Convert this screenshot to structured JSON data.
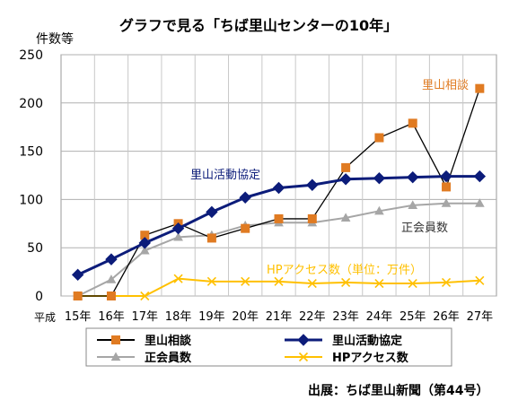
{
  "chart_data": {
    "type": "line",
    "title": "グラフで見る「ちば里山センターの10年」",
    "ylabel": "件数等",
    "x_prefix": "平成",
    "categories": [
      "15年",
      "16年",
      "17年",
      "18年",
      "19年",
      "20年",
      "21年",
      "22年",
      "23年",
      "24年",
      "25年",
      "26年",
      "27年"
    ],
    "ylim": [
      0,
      250
    ],
    "yticks": [
      0,
      50,
      100,
      150,
      200,
      250
    ],
    "grid": true,
    "legend_position": "bottom",
    "series": [
      {
        "name": "里山相談",
        "values": [
          0,
          0,
          63,
          75,
          60,
          70,
          80,
          80,
          133,
          164,
          179,
          113,
          215
        ],
        "color": "#e07b22",
        "marker": "square",
        "line_color": "#000000",
        "annotation": "里山相談",
        "annotation_color": "#e07b22"
      },
      {
        "name": "里山活動協定",
        "values": [
          22,
          38,
          55,
          70,
          87,
          102,
          112,
          115,
          121,
          122,
          123,
          124,
          124
        ],
        "color": "#0c1c7a",
        "marker": "diamond",
        "line_color": "#0c1c7a",
        "annotation": "里山活動協定",
        "annotation_color": "#0c1c7a"
      },
      {
        "name": "正会員数",
        "values": [
          0,
          17,
          47,
          61,
          63,
          73,
          76,
          76,
          81,
          88,
          94,
          96,
          96
        ],
        "color": "#a6a6a6",
        "marker": "triangle",
        "line_color": "#a6a6a6",
        "annotation": "正会員数",
        "annotation_color": "#333333"
      },
      {
        "name": "HPアクセス数",
        "values": [
          0,
          0,
          0,
          18,
          15,
          15,
          15,
          13,
          14,
          13,
          13,
          14,
          16
        ],
        "color": "#ffc000",
        "marker": "x",
        "line_color": "#ffc000",
        "annotation": "HPアクセス数（単位：万件）",
        "annotation_color": "#ffc000"
      }
    ],
    "source": "出展：ちば里山新聞（第44号）"
  }
}
